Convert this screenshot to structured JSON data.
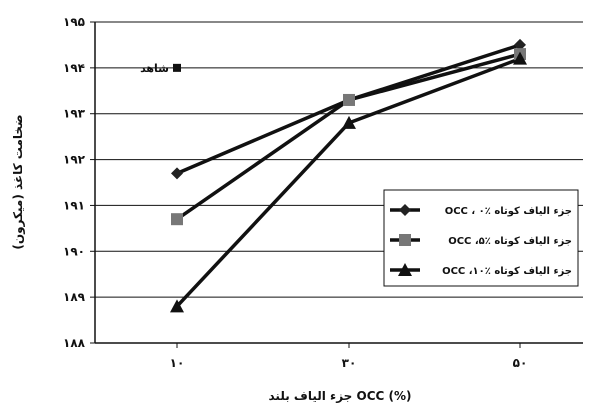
{
  "chart_data": {
    "type": "line",
    "categories": [
      "۱۰",
      "۳۰",
      "۵۰"
    ],
    "x": [
      10,
      30,
      50
    ],
    "ylabel": "ضخامت کاغذ (میکرون)",
    "xlabel": "جزء الیاف بلند OCC  (%)",
    "ylim": [
      188,
      195
    ],
    "yticks": [
      188,
      189,
      190,
      191,
      192,
      193,
      194,
      195
    ],
    "ytick_labels": [
      "۱۸۸",
      "۱۸۹",
      "۱۹۰",
      "۱۹۱",
      "۱۹۲",
      "۱۹۳",
      "۱۹۴",
      "۱۹۵"
    ],
    "grid": "horizontal",
    "legend_position": "right",
    "series": [
      {
        "name": "OCC ، جزء الیاف کوتاه ٪۰",
        "marker": "diamond",
        "color": "#222222",
        "values": [
          191.7,
          193.3,
          194.5
        ]
      },
      {
        "name": "OCC ،جزء الیاف کوتاه ٪۵",
        "marker": "square",
        "color": "#777777",
        "values": [
          190.7,
          193.3,
          194.3
        ]
      },
      {
        "name": "OCC ،جزء الیاف کوتاه ٪۱۰",
        "marker": "triangle",
        "color": "#111111",
        "values": [
          188.8,
          192.8,
          194.2
        ]
      }
    ],
    "annotation": {
      "label": "شاهد",
      "x": 10,
      "y": 194,
      "marker": "square"
    }
  }
}
